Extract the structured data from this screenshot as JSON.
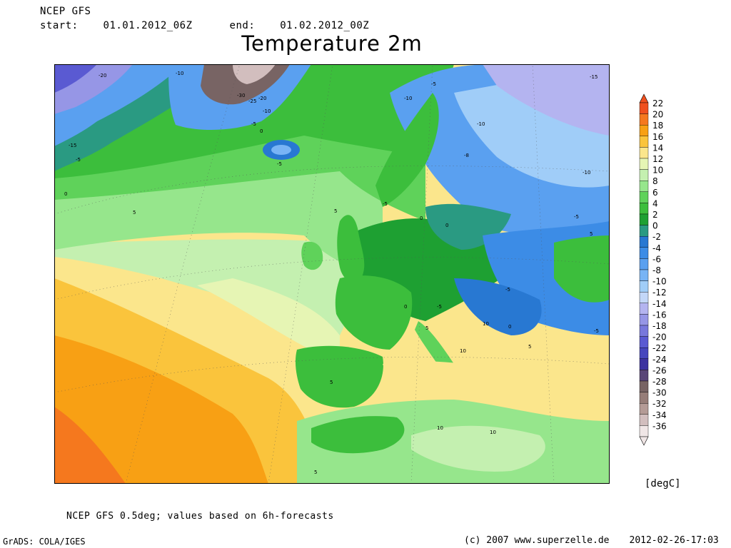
{
  "header": {
    "model": "NCEP GFS",
    "start_label": "start:",
    "start_value": "01.01.2012_06Z",
    "end_label": "end:",
    "end_value": "01.02.2012_00Z"
  },
  "title": "Temperature 2m",
  "legend": {
    "unit": "[degC]",
    "levels": [
      {
        "label": "22",
        "color": "#f0501e"
      },
      {
        "label": "20",
        "color": "#f5781e"
      },
      {
        "label": "18",
        "color": "#f8a014"
      },
      {
        "label": "16",
        "color": "#fac43c"
      },
      {
        "label": "14",
        "color": "#fbe68c"
      },
      {
        "label": "12",
        "color": "#e6f5b4"
      },
      {
        "label": "10",
        "color": "#c4f0b0"
      },
      {
        "label": "8",
        "color": "#96e68c"
      },
      {
        "label": "6",
        "color": "#5fd25a"
      },
      {
        "label": "4",
        "color": "#3cbe3c"
      },
      {
        "label": "2",
        "color": "#1ea032"
      },
      {
        "label": "0",
        "color": "#2a9a82"
      },
      {
        "label": "-2",
        "color": "#2878d2"
      },
      {
        "label": "-4",
        "color": "#3c8ce6"
      },
      {
        "label": "-6",
        "color": "#5aa0f0"
      },
      {
        "label": "-8",
        "color": "#78b4f5"
      },
      {
        "label": "-10",
        "color": "#a0cdf8"
      },
      {
        "label": "-12",
        "color": "#c3d7f8"
      },
      {
        "label": "-14",
        "color": "#b4b4f0"
      },
      {
        "label": "-16",
        "color": "#9696e6"
      },
      {
        "label": "-18",
        "color": "#7878dc"
      },
      {
        "label": "-20",
        "color": "#5a5ad2"
      },
      {
        "label": "-22",
        "color": "#4646be"
      },
      {
        "label": "-24",
        "color": "#3c32a0"
      },
      {
        "label": "-26",
        "color": "#5a4678"
      },
      {
        "label": "-28",
        "color": "#786464"
      },
      {
        "label": "-30",
        "color": "#967d78"
      },
      {
        "label": "-32",
        "color": "#b49b96"
      },
      {
        "label": "-34",
        "color": "#d2bebe"
      },
      {
        "label": "-36",
        "color": "#f0e6e6"
      }
    ]
  },
  "map_labels": [
    "-20",
    "-10",
    "-30",
    "-25",
    "-20",
    "-10",
    "-5",
    "0",
    "-5",
    "-15",
    "-5",
    "0",
    "5",
    "-5",
    "-10",
    "-10",
    "-8",
    "-10",
    "-15",
    "-5",
    "5",
    "0",
    "-5",
    "0",
    "5",
    "-5",
    "0",
    "-5",
    "5",
    "10",
    "10",
    "5",
    "-5",
    "0",
    "5",
    "10",
    "10",
    "5"
  ],
  "notes": {
    "source_note": "NCEP GFS 0.5deg; values based on 6h-forecasts",
    "grads": "GrADS: COLA/IGES",
    "copyright": "(c) 2007 www.superzelle.de",
    "timestamp": "2012-02-26-17:03"
  }
}
